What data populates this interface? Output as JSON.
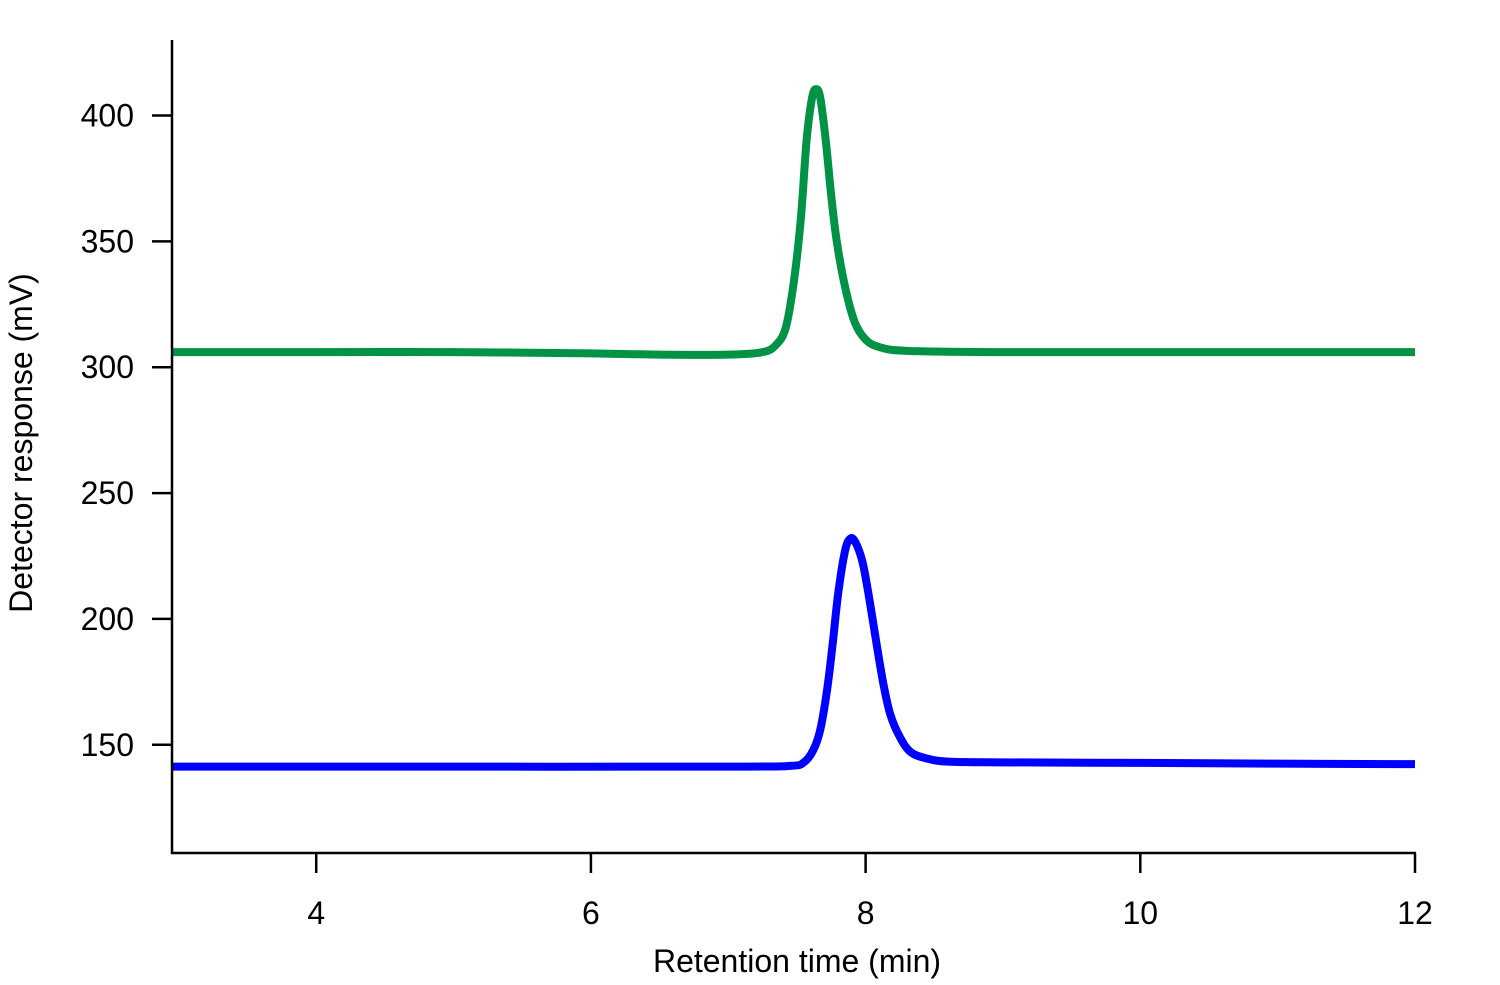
{
  "chart_data": {
    "type": "line",
    "title": "",
    "xlabel": "Retention time (min)",
    "ylabel": "Detector response (mV)",
    "xlim": [
      2.95,
      12
    ],
    "ylim": [
      107,
      430
    ],
    "xticks": [
      4,
      6,
      8,
      10,
      12
    ],
    "yticks": [
      150,
      200,
      250,
      300,
      350,
      400
    ],
    "grid": false,
    "legend": "none",
    "series": [
      {
        "color": "#009245",
        "points": [
          [
            2.95,
            306
          ],
          [
            4,
            306
          ],
          [
            5,
            306
          ],
          [
            6,
            305.5
          ],
          [
            6.5,
            305
          ],
          [
            7,
            305
          ],
          [
            7.25,
            306
          ],
          [
            7.35,
            309
          ],
          [
            7.42,
            316
          ],
          [
            7.48,
            335
          ],
          [
            7.53,
            360
          ],
          [
            7.57,
            390
          ],
          [
            7.61,
            407
          ],
          [
            7.64,
            410.5
          ],
          [
            7.67,
            407
          ],
          [
            7.71,
            390
          ],
          [
            7.75,
            368
          ],
          [
            7.79,
            350
          ],
          [
            7.85,
            332
          ],
          [
            7.92,
            318
          ],
          [
            8.0,
            311
          ],
          [
            8.1,
            308
          ],
          [
            8.3,
            306.5
          ],
          [
            9,
            306
          ],
          [
            10,
            306
          ],
          [
            11,
            306
          ],
          [
            12,
            306
          ]
        ]
      },
      {
        "color": "#0000ff",
        "points": [
          [
            2.95,
            141.3
          ],
          [
            5,
            141.3
          ],
          [
            7,
            141.3
          ],
          [
            7.45,
            141.6
          ],
          [
            7.55,
            143
          ],
          [
            7.62,
            148
          ],
          [
            7.67,
            156
          ],
          [
            7.72,
            172
          ],
          [
            7.76,
            190
          ],
          [
            7.8,
            210
          ],
          [
            7.85,
            227
          ],
          [
            7.89,
            232
          ],
          [
            7.93,
            230
          ],
          [
            7.98,
            222
          ],
          [
            8.03,
            207
          ],
          [
            8.08,
            190
          ],
          [
            8.13,
            174
          ],
          [
            8.18,
            162
          ],
          [
            8.25,
            153
          ],
          [
            8.33,
            147
          ],
          [
            8.45,
            144.5
          ],
          [
            8.6,
            143.3
          ],
          [
            9,
            143
          ],
          [
            10,
            142.8
          ],
          [
            11,
            142.5
          ],
          [
            12,
            142.3
          ]
        ]
      }
    ]
  }
}
